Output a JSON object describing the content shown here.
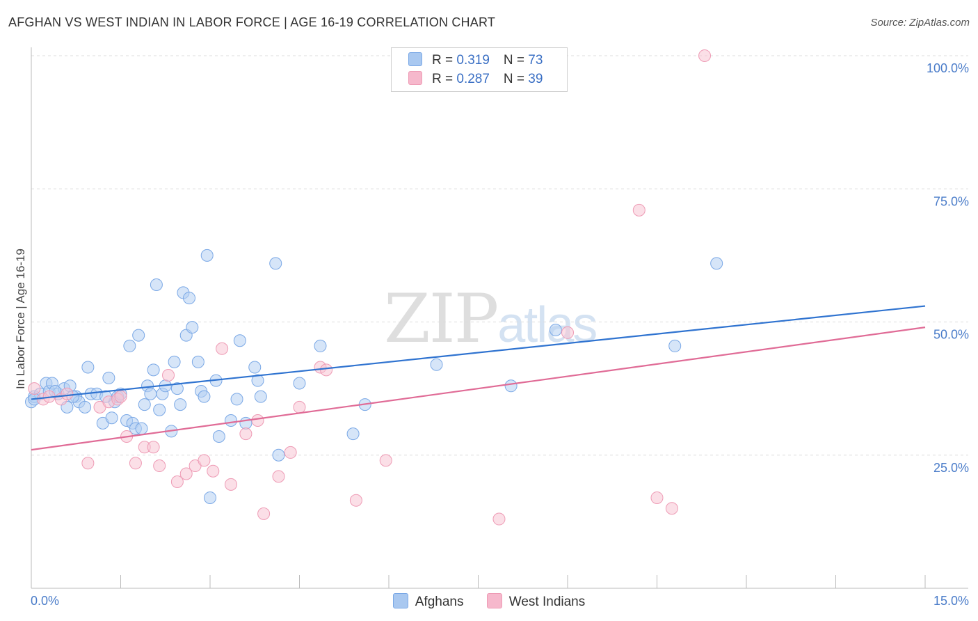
{
  "title": "AFGHAN VS WEST INDIAN IN LABOR FORCE | AGE 16-19 CORRELATION CHART",
  "source": "Source: ZipAtlas.com",
  "watermark": {
    "zip": "ZIP",
    "atlas": "atlas"
  },
  "legend_stats": [
    {
      "r_label": "R = ",
      "r_value": "0.319",
      "n_label": "N = ",
      "n_value": "73",
      "color": "#a9c8f0"
    },
    {
      "r_label": "R = ",
      "r_value": "0.287",
      "n_label": "N = ",
      "n_value": "39",
      "color": "#f6b8cc"
    }
  ],
  "legend_series": [
    {
      "name": "Afghans",
      "color": "#a9c8f0"
    },
    {
      "name": "West Indians",
      "color": "#f6b8cc"
    }
  ],
  "chart_data": {
    "type": "scatter",
    "title": "AFGHAN VS WEST INDIAN IN LABOR FORCE | AGE 16-19 CORRELATION CHART",
    "xlabel": "",
    "ylabel": "In Labor Force | Age 16-19",
    "xlim": [
      0,
      15
    ],
    "ylim": [
      0,
      100
    ],
    "x_tick_labels": [
      "0.0%",
      "15.0%"
    ],
    "y_ticks": [
      25,
      50,
      75,
      100
    ],
    "y_tick_labels": [
      "25.0%",
      "50.0%",
      "75.0%",
      "100.0%"
    ],
    "grid": true,
    "series": [
      {
        "name": "Afghans",
        "color": "#7aa8e6",
        "fill": "#b4cff2",
        "trend_color": "#2f73d0",
        "trend": {
          "x": [
            0,
            15
          ],
          "y": [
            35.5,
            53.0
          ]
        },
        "points": [
          [
            0.0,
            35.0
          ],
          [
            0.05,
            36.0
          ],
          [
            0.15,
            36.5
          ],
          [
            0.25,
            38.5
          ],
          [
            0.3,
            37.0
          ],
          [
            0.35,
            38.5
          ],
          [
            0.45,
            36.5
          ],
          [
            0.55,
            37.5
          ],
          [
            0.6,
            34.0
          ],
          [
            0.65,
            38.0
          ],
          [
            0.75,
            36.0
          ],
          [
            0.8,
            35.0
          ],
          [
            0.9,
            34.0
          ],
          [
            0.95,
            41.5
          ],
          [
            1.0,
            36.5
          ],
          [
            1.1,
            36.5
          ],
          [
            1.2,
            31.0
          ],
          [
            1.3,
            39.5
          ],
          [
            1.35,
            32.0
          ],
          [
            1.4,
            35.0
          ],
          [
            1.45,
            36.0
          ],
          [
            1.5,
            36.5
          ],
          [
            1.6,
            31.5
          ],
          [
            1.65,
            45.5
          ],
          [
            1.7,
            31.0
          ],
          [
            1.75,
            30.0
          ],
          [
            1.8,
            47.5
          ],
          [
            1.85,
            30.0
          ],
          [
            1.9,
            34.5
          ],
          [
            1.95,
            38.0
          ],
          [
            2.0,
            36.5
          ],
          [
            2.05,
            41.0
          ],
          [
            2.1,
            57.0
          ],
          [
            2.15,
            33.5
          ],
          [
            2.2,
            36.5
          ],
          [
            2.25,
            38.0
          ],
          [
            2.35,
            29.5
          ],
          [
            2.4,
            42.5
          ],
          [
            2.45,
            37.5
          ],
          [
            2.5,
            34.5
          ],
          [
            2.55,
            55.5
          ],
          [
            2.6,
            47.5
          ],
          [
            2.65,
            54.5
          ],
          [
            2.7,
            49.0
          ],
          [
            2.8,
            42.5
          ],
          [
            2.85,
            37.0
          ],
          [
            2.9,
            36.0
          ],
          [
            2.95,
            62.5
          ],
          [
            3.0,
            17.0
          ],
          [
            3.1,
            39.0
          ],
          [
            3.15,
            28.5
          ],
          [
            3.35,
            31.5
          ],
          [
            3.45,
            35.5
          ],
          [
            3.5,
            46.5
          ],
          [
            3.6,
            31.0
          ],
          [
            3.75,
            41.5
          ],
          [
            3.8,
            39.0
          ],
          [
            3.85,
            36.0
          ],
          [
            4.1,
            61.0
          ],
          [
            4.15,
            25.0
          ],
          [
            4.5,
            38.5
          ],
          [
            4.85,
            45.5
          ],
          [
            5.4,
            29.0
          ],
          [
            5.6,
            34.5
          ],
          [
            6.8,
            42.0
          ],
          [
            8.05,
            38.0
          ],
          [
            8.8,
            48.5
          ],
          [
            10.8,
            45.5
          ],
          [
            11.5,
            61.0
          ],
          [
            0.05,
            35.5
          ],
          [
            0.4,
            37.0
          ],
          [
            0.7,
            36.0
          ],
          [
            1.25,
            36.0
          ]
        ]
      },
      {
        "name": "West Indians",
        "color": "#ee9bb5",
        "fill": "#f8c4d4",
        "trend_color": "#e06b96",
        "trend": {
          "x": [
            0,
            15
          ],
          "y": [
            26.0,
            49.0
          ]
        },
        "points": [
          [
            0.05,
            37.5
          ],
          [
            0.2,
            35.5
          ],
          [
            0.5,
            35.5
          ],
          [
            0.6,
            36.5
          ],
          [
            0.95,
            23.5
          ],
          [
            1.15,
            34.0
          ],
          [
            1.3,
            35.0
          ],
          [
            1.45,
            35.5
          ],
          [
            1.6,
            28.5
          ],
          [
            1.75,
            23.5
          ],
          [
            1.9,
            26.5
          ],
          [
            2.05,
            26.5
          ],
          [
            2.15,
            23.0
          ],
          [
            2.3,
            40.0
          ],
          [
            2.45,
            20.0
          ],
          [
            2.6,
            21.5
          ],
          [
            2.75,
            23.0
          ],
          [
            2.9,
            24.0
          ],
          [
            3.05,
            22.0
          ],
          [
            3.2,
            45.0
          ],
          [
            3.35,
            19.5
          ],
          [
            3.6,
            29.0
          ],
          [
            3.8,
            31.5
          ],
          [
            3.9,
            14.0
          ],
          [
            4.15,
            21.0
          ],
          [
            4.35,
            25.5
          ],
          [
            4.5,
            34.0
          ],
          [
            4.85,
            41.5
          ],
          [
            4.95,
            41.0
          ],
          [
            5.45,
            16.5
          ],
          [
            5.95,
            24.0
          ],
          [
            7.85,
            13.0
          ],
          [
            9.0,
            48.0
          ],
          [
            10.2,
            71.0
          ],
          [
            10.5,
            17.0
          ],
          [
            10.75,
            15.0
          ],
          [
            11.3,
            100.0
          ],
          [
            0.3,
            36.0
          ],
          [
            1.5,
            36.0
          ]
        ]
      }
    ]
  }
}
